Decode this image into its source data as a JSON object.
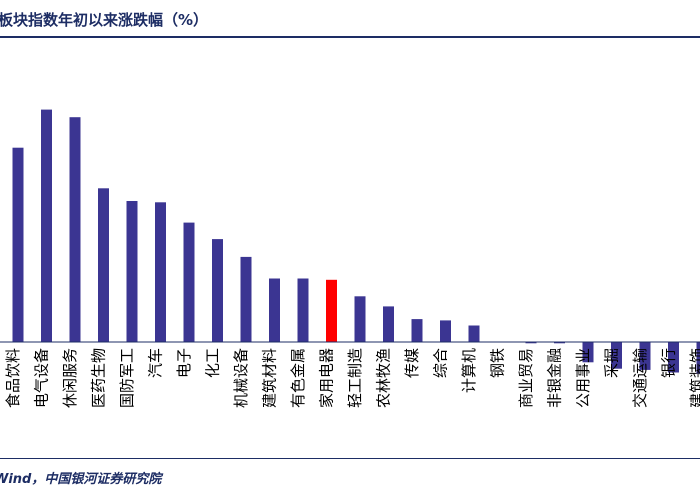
{
  "header": {
    "title": "板块指数年初以来涨跌幅（%）"
  },
  "footer": {
    "source": "Wind，中国银河证券研究院"
  },
  "colors": {
    "bar": "#3b3592",
    "highlight": "#ff0000",
    "text": "#1d2d64",
    "axis": "#1d2d64"
  },
  "chart_data": {
    "type": "bar",
    "title": "板块指数年初以来涨跌幅（%）",
    "xlabel": "",
    "ylabel": "",
    "ylim": [
      -2,
      20
    ],
    "highlight": "家用电器",
    "categories": [
      "食品饮料",
      "电气设备",
      "休闲服务",
      "医药生物",
      "国防军工",
      "汽车",
      "电子",
      "化工",
      "机械设备",
      "建筑材料",
      "有色金属",
      "家用电器",
      "轻工制造",
      "农林牧渔",
      "传媒",
      "综合",
      "计算机",
      "钢铁",
      "商业贸易",
      "非银金融",
      "公用事业",
      "采掘",
      "交通运输",
      "银行",
      "建筑装饰"
    ],
    "values": [
      15.3,
      18.3,
      17.7,
      12.1,
      11.1,
      11.0,
      9.4,
      8.1,
      6.7,
      5.0,
      5.0,
      4.9,
      3.6,
      2.8,
      1.8,
      1.7,
      1.3,
      0.0,
      -0.1,
      -0.1,
      -1.6,
      -2.1,
      -2.2,
      -2.4,
      -2.5
    ]
  }
}
